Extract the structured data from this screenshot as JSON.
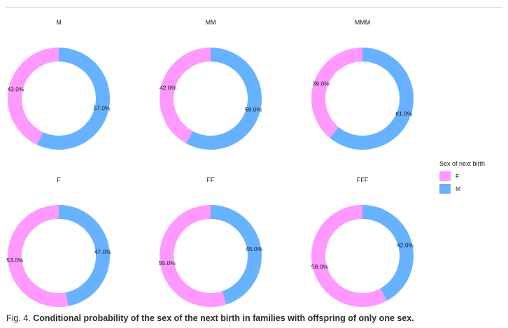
{
  "chart_data": {
    "type": "pie",
    "variant": "donut",
    "series_names": [
      "F",
      "M"
    ],
    "colors": {
      "F": "#ff99ff",
      "M": "#66b2ff"
    },
    "legend": {
      "title": "Sex of next birth",
      "entries": [
        "F",
        "M"
      ],
      "placement": "right"
    },
    "panels": [
      {
        "title": "M",
        "values": {
          "F": 43.0,
          "M": 57.0
        },
        "labels": {
          "F": "43.0%",
          "M": "57.0%"
        }
      },
      {
        "title": "MM",
        "values": {
          "F": 42.0,
          "M": 58.0
        },
        "labels": {
          "F": "42.0%",
          "M": "58.0%"
        }
      },
      {
        "title": "MMM",
        "values": {
          "F": 39.0,
          "M": 61.0
        },
        "labels": {
          "F": "39.0%",
          "M": "61.0%"
        }
      },
      {
        "title": "F",
        "values": {
          "F": 53.0,
          "M": 47.0
        },
        "labels": {
          "F": "53.0%",
          "M": "47.0%"
        }
      },
      {
        "title": "FF",
        "values": {
          "F": 55.0,
          "M": 45.0
        },
        "labels": {
          "F": "55.0%",
          "M": "45.0%"
        }
      },
      {
        "title": "FFF",
        "values": {
          "F": 58.0,
          "M": 42.0
        },
        "labels": {
          "F": "58.0%",
          "M": "42.0%"
        }
      }
    ]
  },
  "caption": {
    "label": "Fig. 4.",
    "text": "Conditional probability of the sex of the next birth in families with offspring of only one sex."
  }
}
